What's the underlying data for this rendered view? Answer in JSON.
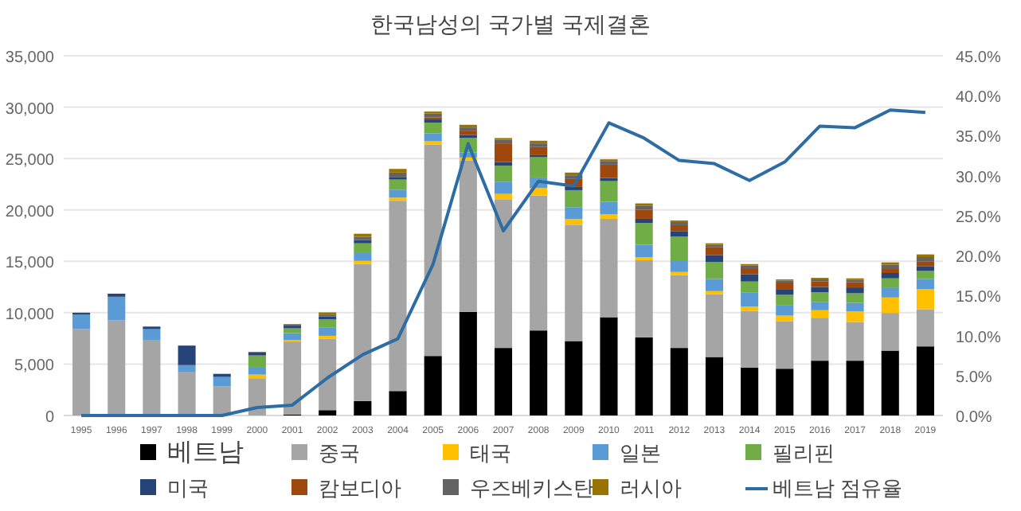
{
  "chart_data": {
    "type": "bar",
    "title": "한국남성의 국가별 국제결혼",
    "stacked": true,
    "grid": "y",
    "legend": "bottom",
    "categories": [
      "1995",
      "1996",
      "1997",
      "1998",
      "1999",
      "2000",
      "2001",
      "2002",
      "2003",
      "2004",
      "2005",
      "2006",
      "2007",
      "2008",
      "2009",
      "2010",
      "2011",
      "2012",
      "2013",
      "2014",
      "2015",
      "2016",
      "2017",
      "2018",
      "2019"
    ],
    "ylim": [
      0,
      35000
    ],
    "yticks": [
      0,
      {
        "value": 5000,
        "label": "5,000"
      },
      {
        "value": 10000,
        "label": "10,000"
      },
      {
        "value": 15000,
        "label": "15,000"
      },
      {
        "value": 20000,
        "label": "20,000"
      },
      {
        "value": 25000,
        "label": "25,000"
      },
      {
        "value": 30000,
        "label": "30,000"
      },
      {
        "value": 35000,
        "label": "35,000"
      }
    ],
    "y2lim": [
      0,
      45
    ],
    "y2ticks": [
      {
        "value": 0,
        "label": "0.0%"
      },
      {
        "value": 5,
        "label": "5.0%"
      },
      {
        "value": 10,
        "label": "10.0%"
      },
      {
        "value": 15,
        "label": "15.0%"
      },
      {
        "value": 20,
        "label": "20.0%"
      },
      {
        "value": 25,
        "label": "25.0%"
      },
      {
        "value": 30,
        "label": "30.0%"
      },
      {
        "value": 35,
        "label": "35.0%"
      },
      {
        "value": 40,
        "label": "40.0%"
      },
      {
        "value": 45,
        "label": "45.0%"
      }
    ],
    "series": [
      {
        "name": "베트남",
        "color": "#000000",
        "values": [
          0,
          0,
          0,
          0,
          0,
          0,
          100,
          520,
          1400,
          2380,
          5790,
          10080,
          6570,
          8270,
          7240,
          9560,
          7600,
          6570,
          5690,
          4650,
          4550,
          5330,
          5330,
          6310,
          6720
        ]
      },
      {
        "name": "중국",
        "color": "#a5a5a5",
        "values": [
          8400,
          9250,
          7300,
          4200,
          2850,
          3620,
          7090,
          6930,
          13330,
          18510,
          20580,
          14720,
          14470,
          13130,
          11320,
          9570,
          7500,
          7080,
          6100,
          5530,
          4600,
          4180,
          3770,
          3670,
          3620
        ]
      },
      {
        "name": "태국",
        "color": "#ffc000",
        "values": [
          0,
          0,
          0,
          0,
          0,
          360,
          150,
          300,
          310,
          310,
          310,
          300,
          520,
          730,
          570,
          460,
          310,
          310,
          310,
          420,
          570,
          730,
          1030,
          1500,
          1960
        ]
      },
      {
        "name": "일본",
        "color": "#5b9bd5",
        "values": [
          1400,
          2300,
          1100,
          700,
          900,
          670,
          670,
          830,
          830,
          770,
          770,
          500,
          1190,
          1030,
          1140,
          1190,
          1190,
          1140,
          1190,
          1340,
          1030,
          820,
          830,
          980,
          990
        ]
      },
      {
        "name": "필리핀",
        "color": "#70ad47",
        "values": [
          0,
          0,
          0,
          0,
          0,
          1190,
          470,
          780,
          880,
          980,
          1040,
          1390,
          1550,
          1970,
          1650,
          2020,
          2120,
          2320,
          1650,
          1090,
          990,
          930,
          930,
          880,
          770
        ]
      },
      {
        "name": "미국",
        "color": "#264478",
        "values": [
          200,
          300,
          250,
          1900,
          300,
          310,
          260,
          260,
          310,
          210,
          310,
          310,
          360,
          200,
          310,
          310,
          410,
          520,
          670,
          720,
          560,
          520,
          570,
          520,
          470
        ]
      },
      {
        "name": "캄보디아",
        "color": "#9e480e",
        "values": [
          0,
          0,
          0,
          0,
          0,
          0,
          0,
          0,
          0,
          0,
          200,
          410,
          1810,
          780,
          780,
          1290,
          880,
          570,
          780,
          570,
          630,
          520,
          520,
          460,
          470
        ]
      },
      {
        "name": "우즈베키스탄",
        "color": "#636363",
        "values": [
          0,
          0,
          0,
          0,
          0,
          50,
          100,
          200,
          310,
          470,
          370,
          310,
          360,
          360,
          360,
          360,
          410,
          310,
          210,
          260,
          200,
          210,
          200,
          360,
          410
        ]
      },
      {
        "name": "러시아",
        "color": "#997300",
        "values": [
          0,
          0,
          0,
          0,
          0,
          0,
          60,
          210,
          310,
          360,
          200,
          260,
          160,
          260,
          260,
          160,
          210,
          150,
          150,
          150,
          110,
          150,
          160,
          210,
          260
        ]
      },
      {
        "name": "베트남 점유율",
        "type": "line",
        "axis": "y2",
        "color": "#2e6da4",
        "marker": "none",
        "values": [
          0,
          0,
          0,
          0,
          0,
          1.0,
          1.3,
          4.7,
          7.6,
          9.6,
          18.9,
          34.0,
          23.1,
          29.3,
          28.7,
          36.6,
          34.7,
          31.9,
          31.5,
          29.4,
          31.7,
          36.2,
          36.0,
          38.2,
          37.9
        ]
      }
    ]
  }
}
